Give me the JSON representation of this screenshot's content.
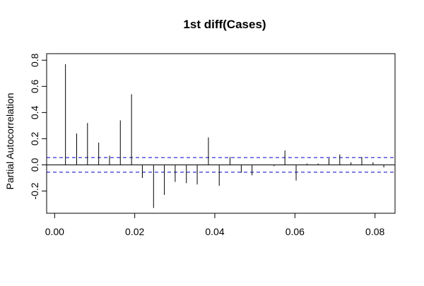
{
  "chart_data": {
    "type": "bar",
    "plot_style": "pacf-spikes",
    "title": "1st diff(Cases)",
    "xlabel": "",
    "ylabel": "Partial Autocorrelation",
    "xlim": [
      -0.002,
      0.085
    ],
    "ylim": [
      -0.37,
      0.85
    ],
    "x_ticks": [
      {
        "value": 0.0,
        "label": "0.00"
      },
      {
        "value": 0.02,
        "label": "0.02"
      },
      {
        "value": 0.04,
        "label": "0.04"
      },
      {
        "value": 0.06,
        "label": "0.06"
      },
      {
        "value": 0.08,
        "label": "0.08"
      }
    ],
    "y_ticks": [
      {
        "value": -0.2,
        "label": "-0.2"
      },
      {
        "value": 0.0,
        "label": "0.0"
      },
      {
        "value": 0.2,
        "label": "0.2"
      },
      {
        "value": 0.4,
        "label": "0.4"
      },
      {
        "value": 0.6,
        "label": "0.6"
      },
      {
        "value": 0.8,
        "label": "0.8"
      }
    ],
    "confidence_bound": 0.056,
    "colors": {
      "spike": "#000000",
      "bound": "#0000cc",
      "zero": "#000000"
    },
    "lags": [
      0.0027,
      0.0055,
      0.0082,
      0.011,
      0.0137,
      0.0164,
      0.0192,
      0.0219,
      0.0247,
      0.0274,
      0.0301,
      0.0329,
      0.0356,
      0.0384,
      0.0411,
      0.0438,
      0.0466,
      0.0493,
      0.0521,
      0.0548,
      0.0575,
      0.0603,
      0.063,
      0.0658,
      0.0685,
      0.0712,
      0.074,
      0.0767,
      0.0795,
      0.0822
    ],
    "values": [
      0.77,
      0.24,
      0.32,
      0.17,
      0.07,
      0.34,
      0.54,
      -0.1,
      -0.33,
      -0.23,
      -0.13,
      -0.14,
      -0.15,
      0.21,
      -0.16,
      0.06,
      -0.06,
      -0.08,
      0.0,
      -0.01,
      0.11,
      -0.12,
      0.01,
      0.01,
      0.05,
      0.08,
      0.02,
      0.06,
      0.02,
      -0.02
    ]
  }
}
